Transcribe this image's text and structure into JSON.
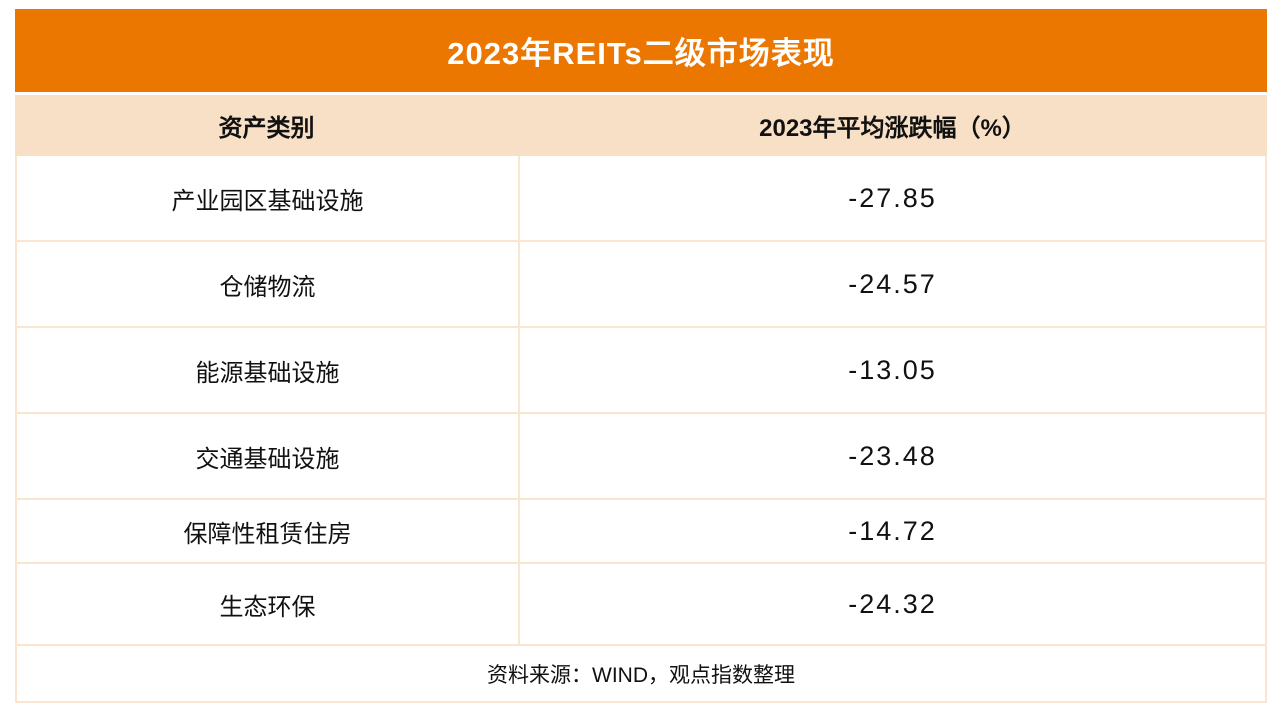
{
  "title": "2023年REITs二级市场表现",
  "chart_data": {
    "type": "table",
    "title": "2023年REITs二级市场表现",
    "columns": [
      "资产类别",
      "2023年平均涨跌幅（%）"
    ],
    "categories": [
      "产业园区基础设施",
      "仓储物流",
      "能源基础设施",
      "交通基础设施",
      "保障性租赁住房",
      "生态环保"
    ],
    "values": [
      -27.85,
      -24.57,
      -13.05,
      -23.48,
      -14.72,
      -24.32
    ],
    "value_labels": [
      "-27.85",
      "-24.57",
      "-13.05",
      "-23.48",
      "-14.72",
      "-24.32"
    ],
    "source": "资料来源：WIND，观点指数整理"
  },
  "colors": {
    "accent_orange": "#EB7600",
    "header_peach": "#F8E0C6",
    "grid_line": "#FAE5CF",
    "title_text": "#FFFFFF",
    "body_text": "#111111"
  }
}
